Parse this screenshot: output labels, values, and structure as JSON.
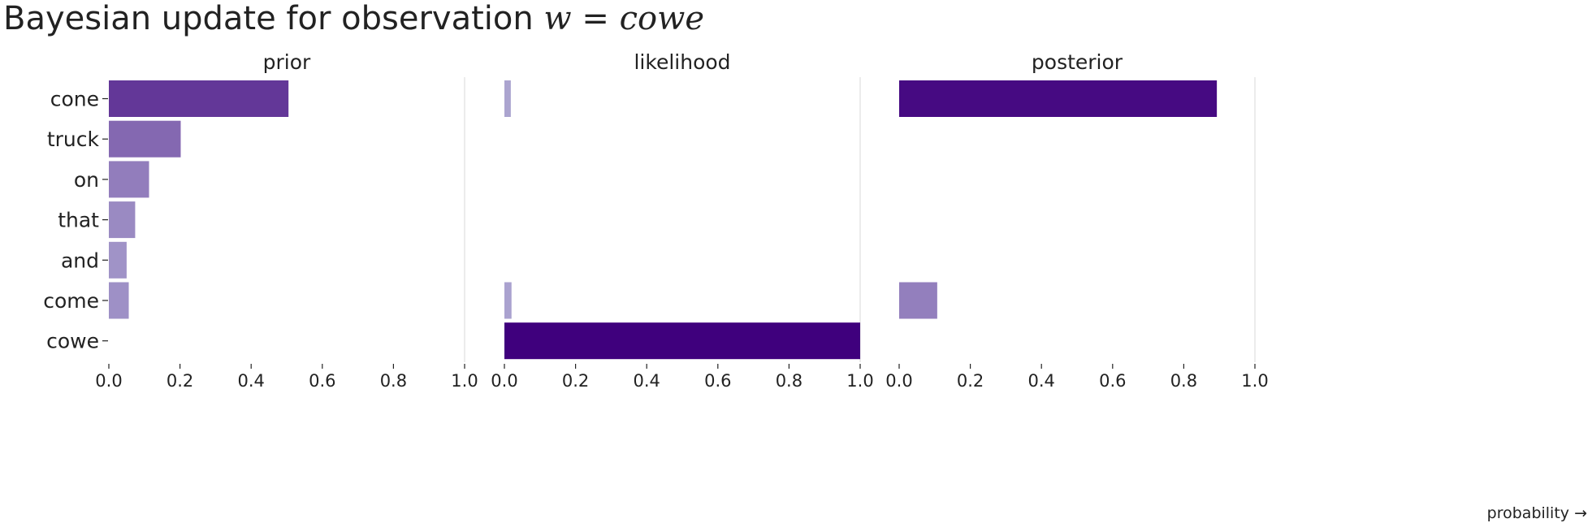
{
  "title": {
    "prefix": "Bayesian update for observation ",
    "math_var": "w",
    "math_eq": " = ",
    "math_value": "cowe"
  },
  "colors": {
    "scheme": "purples",
    "max_color": "#3f007d",
    "min_color": "#bcbddc",
    "grid": "#e6e6e6",
    "tick": "#222222"
  },
  "chart_data": {
    "type": "bar",
    "orientation": "horizontal",
    "categories": [
      "cone",
      "truck",
      "on",
      "that",
      "and",
      "come",
      "cowe"
    ],
    "xlim": [
      0,
      1
    ],
    "ticks": [
      "0.0",
      "0.2",
      "0.4",
      "0.6",
      "0.8",
      "1.0"
    ],
    "tick_values": [
      0,
      0.2,
      0.4,
      0.6,
      0.8,
      1.0
    ],
    "grid": "vertical at 1.0",
    "xlabel": "probability →",
    "panels": [
      {
        "name": "prior",
        "values": [
          0.505,
          0.202,
          0.113,
          0.074,
          0.05,
          0.056,
          0.0
        ]
      },
      {
        "name": "likelihood",
        "values": [
          0.018,
          0.0,
          0.0,
          0.0,
          0.0,
          0.02,
          1.0
        ]
      },
      {
        "name": "posterior",
        "values": [
          0.893,
          0.0,
          0.0,
          0.0,
          0.0,
          0.107,
          0.0
        ]
      }
    ]
  }
}
